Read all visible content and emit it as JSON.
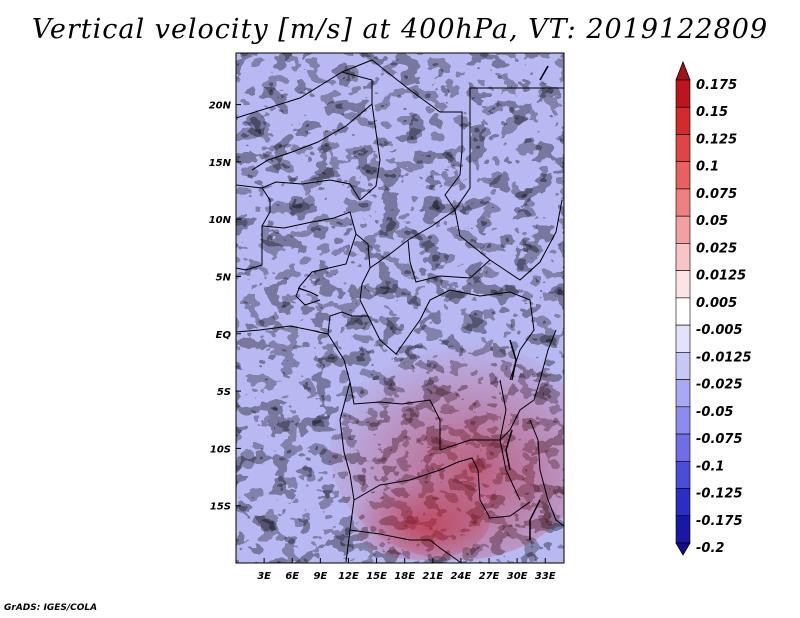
{
  "title": "Vertical velocity [m/s] at 400hPa, VT: 2019122809",
  "credit": "GrADS: IGES/COLA",
  "map": {
    "lon_range": [
      0,
      35
    ],
    "lat_range": [
      -20,
      24.5
    ],
    "x_ticks": [
      "3E",
      "6E",
      "9E",
      "12E",
      "15E",
      "18E",
      "21E",
      "24E",
      "27E",
      "30E",
      "33E"
    ],
    "x_tick_values": [
      3,
      6,
      9,
      12,
      15,
      18,
      21,
      24,
      27,
      30,
      33
    ],
    "y_ticks": [
      "20N",
      "15N",
      "10N",
      "5N",
      "EQ",
      "5S",
      "10S",
      "15S"
    ],
    "y_tick_values": [
      20,
      15,
      10,
      5,
      0,
      -5,
      -10,
      -15
    ]
  },
  "colorbar": {
    "labels": [
      "0.175",
      "0.15",
      "0.125",
      "0.1",
      "0.075",
      "0.05",
      "0.025",
      "0.0125",
      "0.005",
      "-0.005",
      "-0.0125",
      "-0.025",
      "-0.05",
      "-0.075",
      "-0.1",
      "-0.125",
      "-0.175",
      "-0.2"
    ],
    "colors": [
      "#a50f15",
      "#c0141c",
      "#d42a2a",
      "#e04444",
      "#e86060",
      "#ef8080",
      "#f4a0a0",
      "#f8c4c4",
      "#fce4e4",
      "#ffffff",
      "#e2e2fc",
      "#c8c8f8",
      "#a8a8f4",
      "#8c8cee",
      "#6e6ee6",
      "#4c4cda",
      "#2c2cc8",
      "#1818a8",
      "#10108c"
    ]
  }
}
